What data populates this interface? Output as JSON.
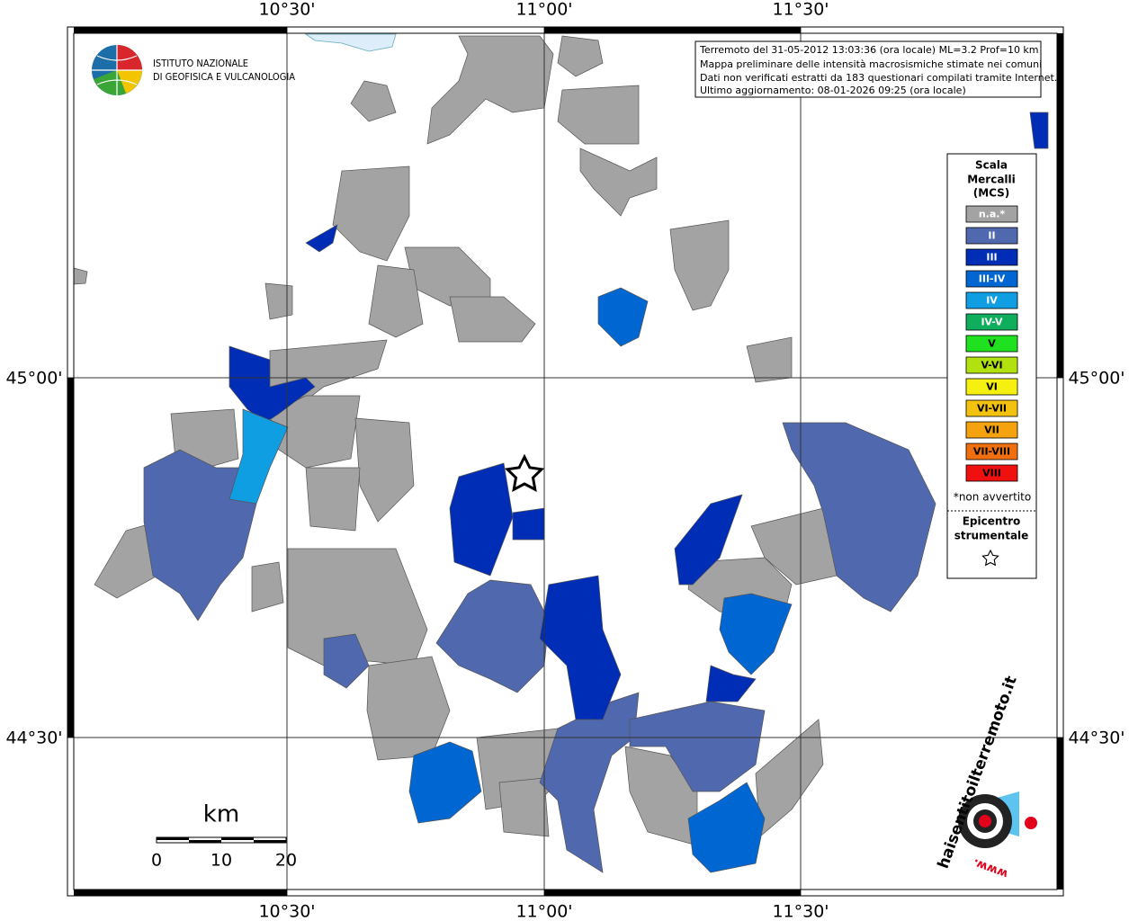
{
  "graticule": {
    "longitudes": [
      "10°30'",
      "11°00'",
      "11°30'"
    ],
    "latitudes": [
      "45°00'",
      "44°30'"
    ]
  },
  "institute": {
    "line1": "ISTITUTO NAZIONALE",
    "line2": "DI GEOFISICA E VULCANOLOGIA"
  },
  "info_box": [
    "Terremoto del 31-05-2012 13:03:36 (ora locale) ML=3.2 Prof=10 km",
    "Mappa preliminare delle intensità macrosismiche stimate nei comuni",
    "Dati non verificati estratti da 183 questionari compilati tramite Internet.",
    "Ultimo aggiornamento: 08-01-2026 09:25 (ora locale)"
  ],
  "legend": {
    "title": [
      "Scala",
      "Mercalli",
      "(MCS)"
    ],
    "classes": [
      {
        "label": "n.a.*",
        "color": "#a3a3a3"
      },
      {
        "label": "II",
        "color": "#4f68ae"
      },
      {
        "label": "III",
        "color": "#002db5"
      },
      {
        "label": "III-IV",
        "color": "#0066d1"
      },
      {
        "label": "IV",
        "color": "#0f9ee2"
      },
      {
        "label": "IV-V",
        "color": "#0fae5c"
      },
      {
        "label": "V",
        "color": "#1fe11f"
      },
      {
        "label": "V-VI",
        "color": "#b1e20f"
      },
      {
        "label": "VI",
        "color": "#f5f00f"
      },
      {
        "label": "VI-VII",
        "color": "#f2c20f"
      },
      {
        "label": "VII",
        "color": "#f5a20f"
      },
      {
        "label": "VII-VIII",
        "color": "#f0700f"
      },
      {
        "label": "VIII",
        "color": "#f0100f"
      }
    ],
    "note": "*non avvertito",
    "epicenter": [
      "Epicentro",
      "strumentale"
    ]
  },
  "scale_bar": {
    "unit": "km",
    "ticks": [
      0,
      10,
      20
    ]
  },
  "website": {
    "name": "haisentitoilterremoto.it",
    "prefix": "www."
  }
}
